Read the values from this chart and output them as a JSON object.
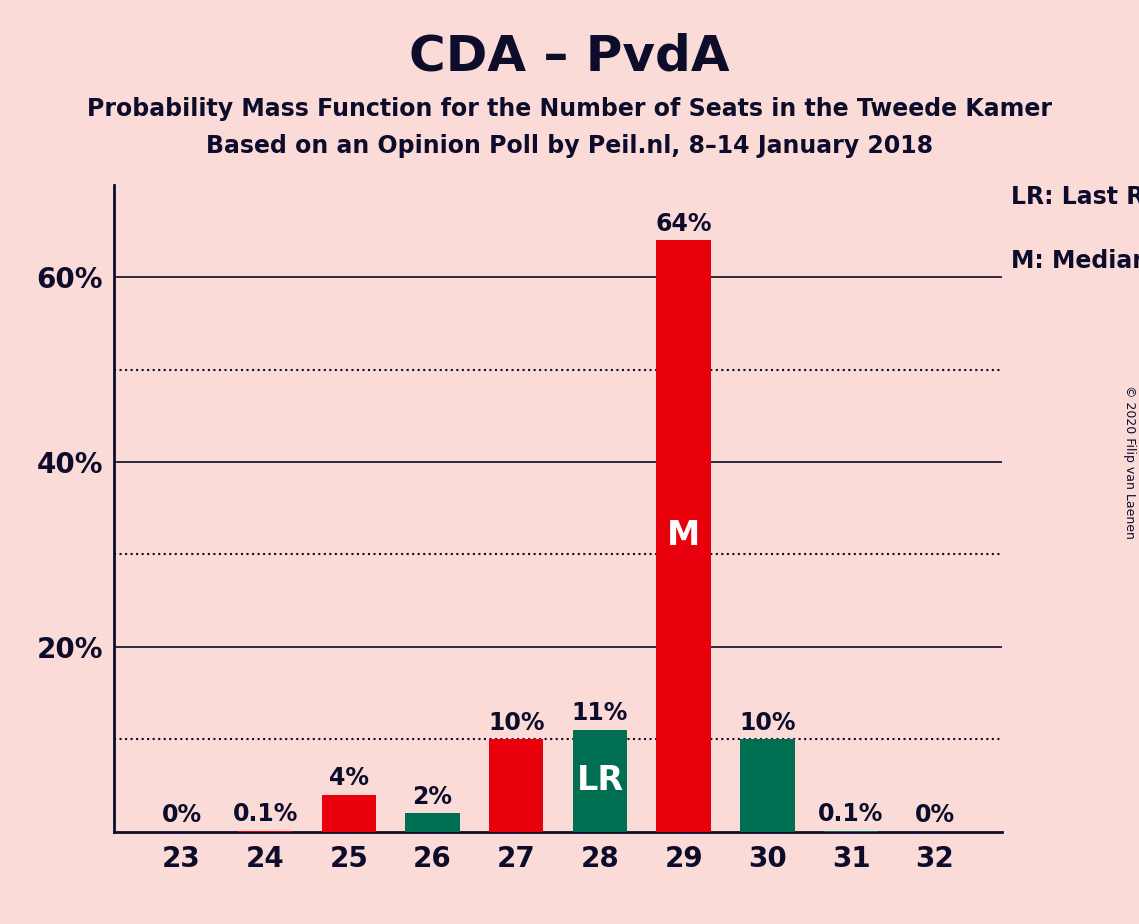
{
  "title": "CDA – PvdA",
  "subtitle1": "Probability Mass Function for the Number of Seats in the Tweede Kamer",
  "subtitle2": "Based on an Opinion Poll by Peil.nl, 8–14 January 2018",
  "copyright": "© 2020 Filip van Laenen",
  "categories": [
    23,
    24,
    25,
    26,
    27,
    28,
    29,
    30,
    31,
    32
  ],
  "values": [
    0.0,
    0.1,
    4.0,
    2.0,
    10.0,
    11.0,
    64.0,
    10.0,
    0.1,
    0.0
  ],
  "colors": [
    "#E8000D",
    "#E8000D",
    "#E8000D",
    "#006F51",
    "#E8000D",
    "#006F51",
    "#E8000D",
    "#006F51",
    "#006F51",
    "#006F51"
  ],
  "labels": [
    "0%",
    "0.1%",
    "4%",
    "2%",
    "10%",
    "11%",
    "64%",
    "10%",
    "0.1%",
    "0%"
  ],
  "bar_annotations": [
    null,
    null,
    null,
    null,
    null,
    "LR",
    "M",
    null,
    null,
    null
  ],
  "legend_lr": "LR: Last Result",
  "legend_m": "M: Median",
  "background_color": "#FADBD8",
  "ylim": [
    0,
    70
  ],
  "solid_lines": [
    20,
    40,
    60
  ],
  "dotted_lines": [
    10,
    30,
    50
  ],
  "ytick_positions": [
    20,
    40,
    60
  ],
  "ytick_labels": [
    "20%",
    "40%",
    "60%"
  ],
  "title_fontsize": 36,
  "subtitle_fontsize": 17,
  "axis_fontsize": 20,
  "label_fontsize": 17,
  "annotation_fontsize": 24,
  "legend_fontsize": 17
}
